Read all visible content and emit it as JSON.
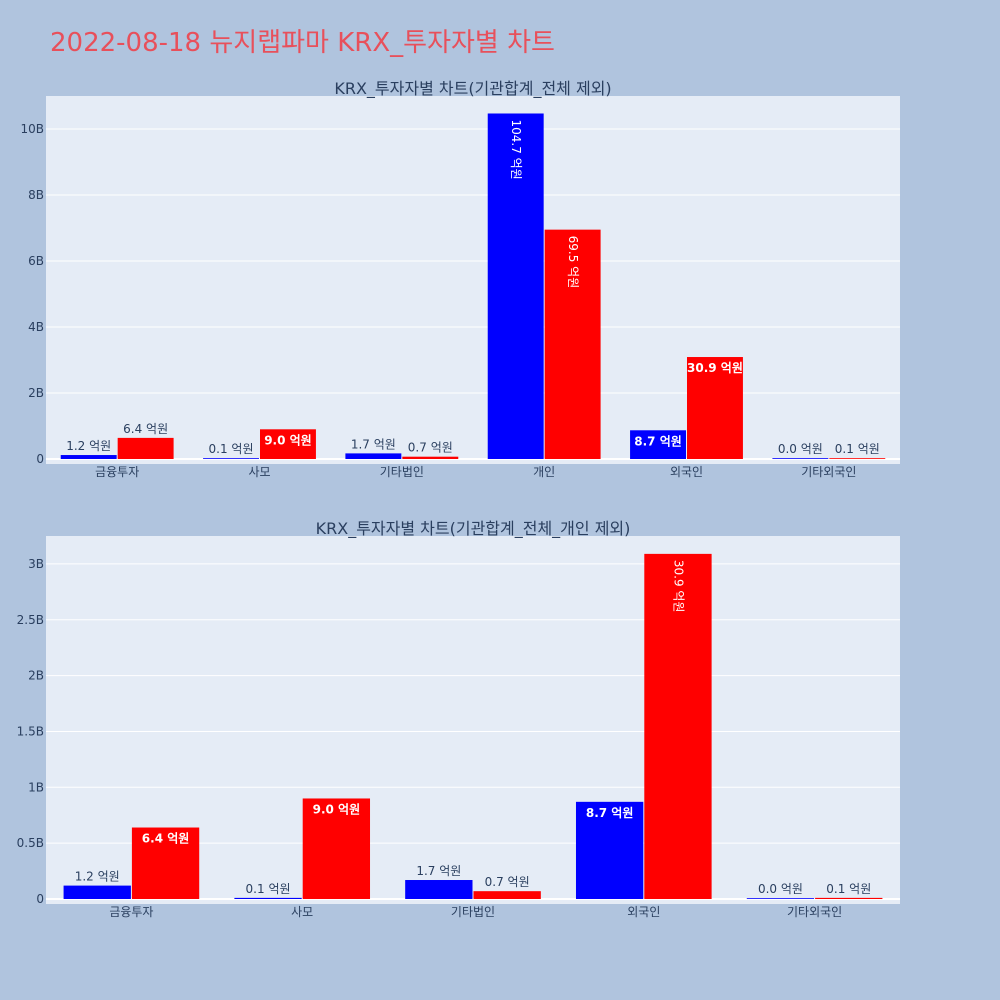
{
  "page_title": "2022-08-18 뉴지랩파마 KRX_투자자별 차트",
  "chart_data": [
    {
      "type": "bar",
      "title": "KRX_투자자별 차트(기관합계_전체 제외)",
      "categories": [
        "금융투자",
        "사모",
        "기타법인",
        "개인",
        "외국인",
        "기타외국인"
      ],
      "series": [
        {
          "color": "#0000ff",
          "values": [
            120000000,
            10000000,
            170000000,
            10470000000,
            870000000,
            0
          ],
          "labels": [
            "1.2 억원",
            "0.1 억원",
            "1.7 억원",
            "104.7 억원",
            "8.7 억원",
            "0.0 억원"
          ]
        },
        {
          "color": "#ff0000",
          "values": [
            640000000,
            900000000,
            70000000,
            6950000000,
            3090000000,
            10000000
          ],
          "labels": [
            "6.4 억원",
            "9.0 억원",
            "0.7 억원",
            "69.5 억원",
            "30.9 억원",
            "0.1 억원"
          ]
        }
      ],
      "yticks": [
        0,
        2000000000,
        4000000000,
        6000000000,
        8000000000,
        10000000000
      ],
      "ytick_labels": [
        "0",
        "2B",
        "4B",
        "6B",
        "8B",
        "10B"
      ],
      "ylim": [
        0,
        11000000000
      ],
      "grid": true
    },
    {
      "type": "bar",
      "title": "KRX_투자자별 차트(기관합계_전체_개인 제외)",
      "categories": [
        "금융투자",
        "사모",
        "기타법인",
        "외국인",
        "기타외국인"
      ],
      "series": [
        {
          "color": "#0000ff",
          "values": [
            120000000,
            10000000,
            170000000,
            870000000,
            0
          ],
          "labels": [
            "1.2 억원",
            "0.1 억원",
            "1.7 억원",
            "8.7 억원",
            "0.0 억원"
          ]
        },
        {
          "color": "#ff0000",
          "values": [
            640000000,
            900000000,
            70000000,
            3090000000,
            10000000
          ],
          "labels": [
            "6.4 억원",
            "9.0 억원",
            "0.7 억원",
            "30.9 억원",
            "0.1 억원"
          ]
        }
      ],
      "yticks": [
        0,
        500000000,
        1000000000,
        1500000000,
        2000000000,
        2500000000,
        3000000000
      ],
      "ytick_labels": [
        "0",
        "0.5B",
        "1B",
        "1.5B",
        "2B",
        "2.5B",
        "3B"
      ],
      "ylim": [
        0,
        3250000000
      ],
      "grid": true
    }
  ]
}
